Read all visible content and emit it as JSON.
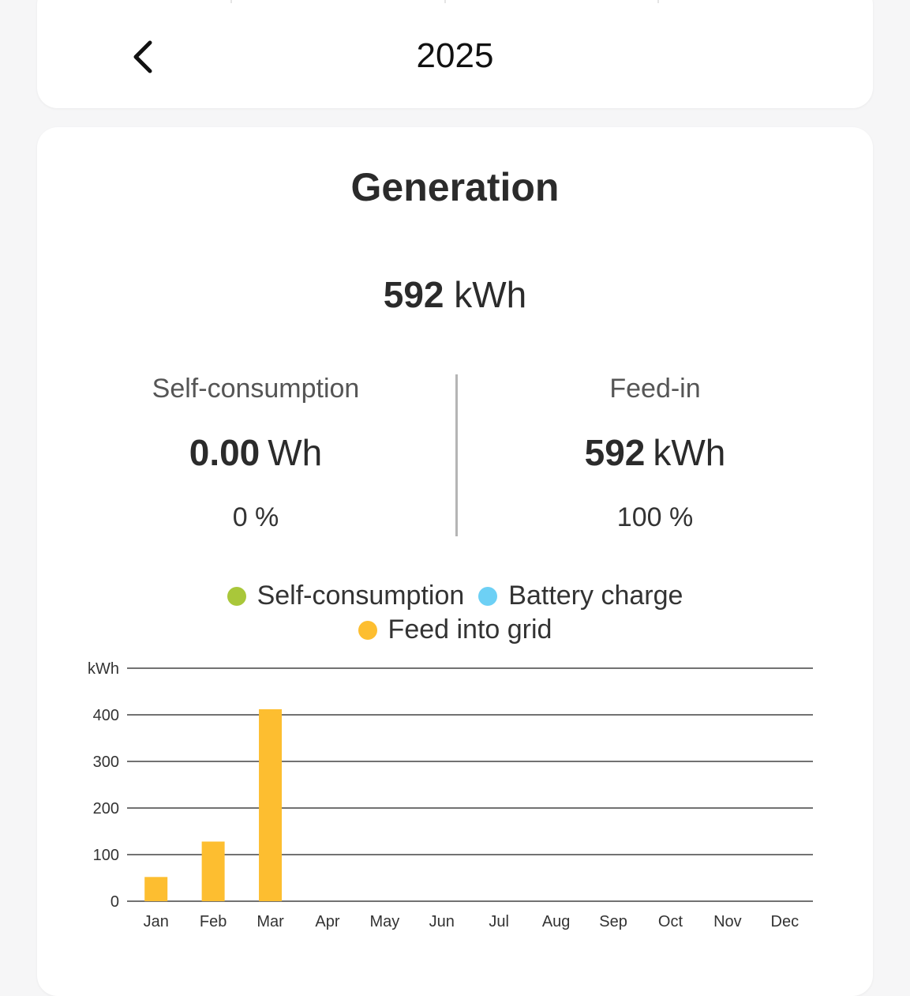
{
  "header": {
    "year": "2025"
  },
  "generation": {
    "title": "Generation",
    "total_value": "592",
    "total_unit": "kWh",
    "self_consumption": {
      "label": "Self-consumption",
      "value": "0.00",
      "unit": "Wh",
      "percent": "0 %"
    },
    "feed_in": {
      "label": "Feed-in",
      "value": "592",
      "unit": "kWh",
      "percent": "100 %"
    }
  },
  "legend": [
    {
      "label": "Self-consumption",
      "color": "#a9c73a"
    },
    {
      "label": "Battery charge",
      "color": "#6dd0f5"
    },
    {
      "label": "Feed into grid",
      "color": "#fdbe30"
    }
  ],
  "chart_data": {
    "type": "bar",
    "ylabel": "kWh",
    "ylim": [
      0,
      500
    ],
    "yticks": [
      0,
      100,
      200,
      300,
      400
    ],
    "categories": [
      "Jan",
      "Feb",
      "Mar",
      "Apr",
      "May",
      "Jun",
      "Jul",
      "Aug",
      "Sep",
      "Oct",
      "Nov",
      "Dec"
    ],
    "series": [
      {
        "name": "Feed into grid",
        "color": "#fdbe30",
        "values": [
          52,
          128,
          412,
          0,
          0,
          0,
          0,
          0,
          0,
          0,
          0,
          0
        ]
      }
    ],
    "grid": true
  }
}
